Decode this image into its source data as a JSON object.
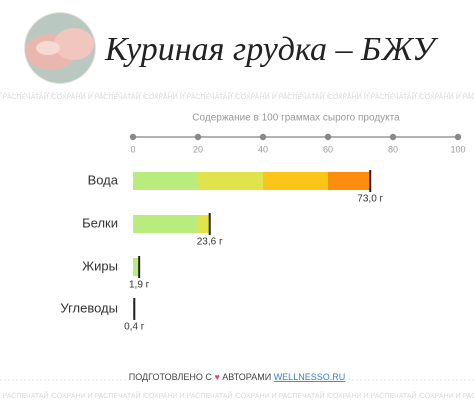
{
  "chart_data": {
    "type": "bar",
    "orientation": "horizontal",
    "title": "Куриная грудка – БЖУ",
    "subtitle": "Содержание в 100 граммах сырого продукта",
    "watermark": "СОХРАНИ И РАСПЕЧАТАЙ /",
    "categories": [
      "Вода",
      "Белки",
      "Жиры",
      "Углеводы"
    ],
    "values": [
      73.0,
      23.6,
      1.9,
      0.4
    ],
    "value_labels": [
      "73,0 г",
      "23,6 г",
      "1,9 г",
      "0,4 г"
    ],
    "band_colors": [
      "#b8ec7c",
      "#dfe44c",
      "#fcc51a",
      "#fc8d0d",
      "#f25a1e"
    ],
    "xlim": [
      0,
      100
    ],
    "xticks": [
      0,
      20,
      40,
      60,
      80,
      100
    ],
    "footer": {
      "prefix": "ПОДГОТОВЛЕНО С",
      "heart": "♥",
      "middle": "АВТОРАМИ",
      "link": "WELLNESSO.RU"
    }
  }
}
